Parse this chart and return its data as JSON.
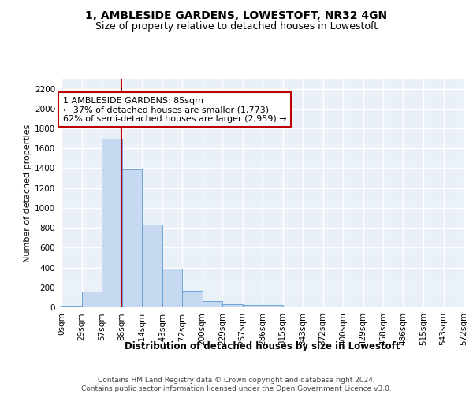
{
  "title": "1, AMBLESIDE GARDENS, LOWESTOFT, NR32 4GN",
  "subtitle": "Size of property relative to detached houses in Lowestoft",
  "xlabel": "Distribution of detached houses by size in Lowestoft",
  "ylabel": "Number of detached properties",
  "bar_values": [
    15,
    155,
    1700,
    1390,
    835,
    385,
    165,
    65,
    35,
    25,
    25,
    10,
    0,
    0,
    0,
    0,
    0,
    0,
    0,
    0
  ],
  "bin_edges": [
    0,
    28.6,
    57.2,
    85.8,
    114.4,
    143.0,
    171.6,
    200.2,
    228.8,
    257.4,
    286.0,
    314.6,
    343.2,
    371.8,
    400.4,
    429.0,
    457.6,
    486.2,
    514.8,
    543.4,
    572.0
  ],
  "tick_labels": [
    "0sqm",
    "29sqm",
    "57sqm",
    "86sqm",
    "114sqm",
    "143sqm",
    "172sqm",
    "200sqm",
    "229sqm",
    "257sqm",
    "286sqm",
    "315sqm",
    "343sqm",
    "372sqm",
    "400sqm",
    "429sqm",
    "458sqm",
    "486sqm",
    "515sqm",
    "543sqm",
    "572sqm"
  ],
  "bar_color": "#c6d9f0",
  "bar_edge_color": "#5b9bd5",
  "background_color": "#eaf0f8",
  "grid_color": "#ffffff",
  "vline_x": 85,
  "vline_color": "#c00000",
  "ylim": [
    0,
    2300
  ],
  "yticks": [
    0,
    200,
    400,
    600,
    800,
    1000,
    1200,
    1400,
    1600,
    1800,
    2000,
    2200
  ],
  "annotation_text": "1 AMBLESIDE GARDENS: 85sqm\n← 37% of detached houses are smaller (1,773)\n62% of semi-detached houses are larger (2,959) →",
  "annotation_box_color": "#c00000",
  "footer_text": "Contains HM Land Registry data © Crown copyright and database right 2024.\nContains public sector information licensed under the Open Government Licence v3.0.",
  "title_fontsize": 10,
  "subtitle_fontsize": 9,
  "axis_label_fontsize": 8.5,
  "ylabel_fontsize": 8,
  "tick_fontsize": 7.5,
  "annotation_fontsize": 8,
  "footer_fontsize": 6.5
}
